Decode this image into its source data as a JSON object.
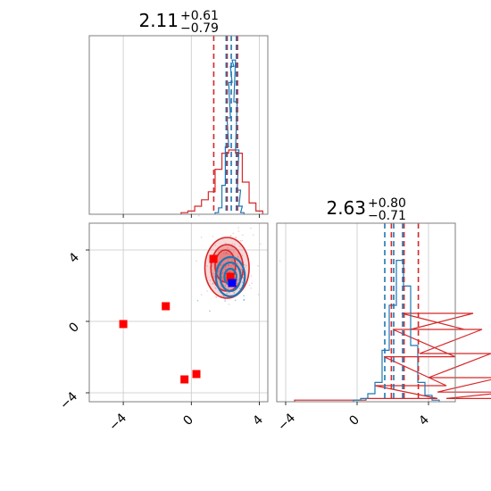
{
  "chart_data": [
    {
      "type": "histogram",
      "panel": "marginal-x",
      "title_value": "2.11",
      "title_plus": "+0.61",
      "title_minus": "−0.79",
      "xlim": [
        -6,
        4.5
      ],
      "grid": true,
      "series": [
        {
          "color": "#d62728",
          "bins": [
            [
              -0.6,
              0.01
            ],
            [
              -0.2,
              0.02
            ],
            [
              0.2,
              0.05
            ],
            [
              0.6,
              0.09
            ],
            [
              1.0,
              0.14
            ],
            [
              1.4,
              0.28
            ],
            [
              1.8,
              0.38
            ],
            [
              2.2,
              0.4
            ],
            [
              2.6,
              0.38
            ],
            [
              3.0,
              0.2
            ],
            [
              3.4,
              0.07
            ],
            [
              3.8,
              0.02
            ]
          ],
          "quantile_lines": [
            1.32,
            2.11,
            2.72
          ]
        },
        {
          "color": "#1f77b4",
          "bins": [
            [
              1.4,
              0.01
            ],
            [
              1.6,
              0.04
            ],
            [
              1.8,
              0.18
            ],
            [
              2.0,
              0.42
            ],
            [
              2.1,
              0.6
            ],
            [
              2.2,
              0.82
            ],
            [
              2.3,
              0.92
            ],
            [
              2.4,
              0.96
            ],
            [
              2.5,
              0.7
            ],
            [
              2.6,
              0.4
            ],
            [
              2.7,
              0.15
            ],
            [
              2.8,
              0.05
            ],
            [
              2.9,
              0.01
            ]
          ],
          "quantile_lines": [
            2.05,
            2.35,
            2.65
          ]
        }
      ]
    },
    {
      "type": "scatter",
      "panel": "joint",
      "xlim": [
        -6,
        4.5
      ],
      "ylim": [
        -4.5,
        5.5
      ],
      "x_ticks": [
        "−4",
        "0",
        "4"
      ],
      "y_ticks": [
        "4",
        "0",
        "−4"
      ],
      "red_points": [
        [
          1.3,
          3.5
        ],
        [
          2.3,
          2.5
        ],
        [
          -1.5,
          0.85
        ],
        [
          -4.0,
          -0.15
        ],
        [
          -0.4,
          -3.25
        ],
        [
          0.3,
          -2.95
        ]
      ],
      "blue_point": [
        2.4,
        2.15
      ],
      "red_contours": [
        [
          2.1,
          3.0,
          1.3,
          1.7
        ],
        [
          2.1,
          3.0,
          0.95,
          1.3
        ],
        [
          2.0,
          3.1,
          0.6,
          0.9
        ]
      ],
      "blue_contours": [
        [
          2.3,
          2.5,
          0.85,
          1.1
        ],
        [
          2.3,
          2.5,
          0.6,
          0.8
        ],
        [
          2.3,
          2.5,
          0.35,
          0.45
        ]
      ]
    },
    {
      "type": "histogram",
      "panel": "marginal-y",
      "title_value": "2.63",
      "title_plus": "+0.80",
      "title_minus": "−0.71",
      "xlim": [
        -4.5,
        5.5
      ],
      "x_ticks": [
        "−4",
        "0",
        "4"
      ],
      "grid": true,
      "series": [
        {
          "color": "#d62728",
          "bins": [
            [
              -3.5,
              0.01
            ],
            [
              0.5,
              0.02
            ],
            [
              1.0,
              0.1
            ],
            [
              1.5,
              0.28
            ],
            [
              2.0,
              0.45
            ],
            [
              2.5,
              0.55
            ],
            [
              3.0,
              0.45
            ],
            [
              3.5,
              0.3
            ],
            [
              4.0,
              0.15
            ],
            [
              4.5,
              0.06
            ],
            [
              5.0,
              0.02
            ]
          ],
          "quantile_lines": [
            1.92,
            2.63,
            3.43
          ]
        },
        {
          "color": "#1f77b4",
          "bins": [
            [
              -0.2,
              0.01
            ],
            [
              0.2,
              0.02
            ],
            [
              0.6,
              0.05
            ],
            [
              1.0,
              0.12
            ],
            [
              1.4,
              0.32
            ],
            [
              1.8,
              0.6
            ],
            [
              2.2,
              0.88
            ],
            [
              2.6,
              0.72
            ],
            [
              3.0,
              0.35
            ],
            [
              3.4,
              0.12
            ],
            [
              3.8,
              0.04
            ],
            [
              4.2,
              0.01
            ]
          ],
          "quantile_lines": [
            1.55,
            2.05,
            2.55
          ]
        }
      ]
    }
  ]
}
